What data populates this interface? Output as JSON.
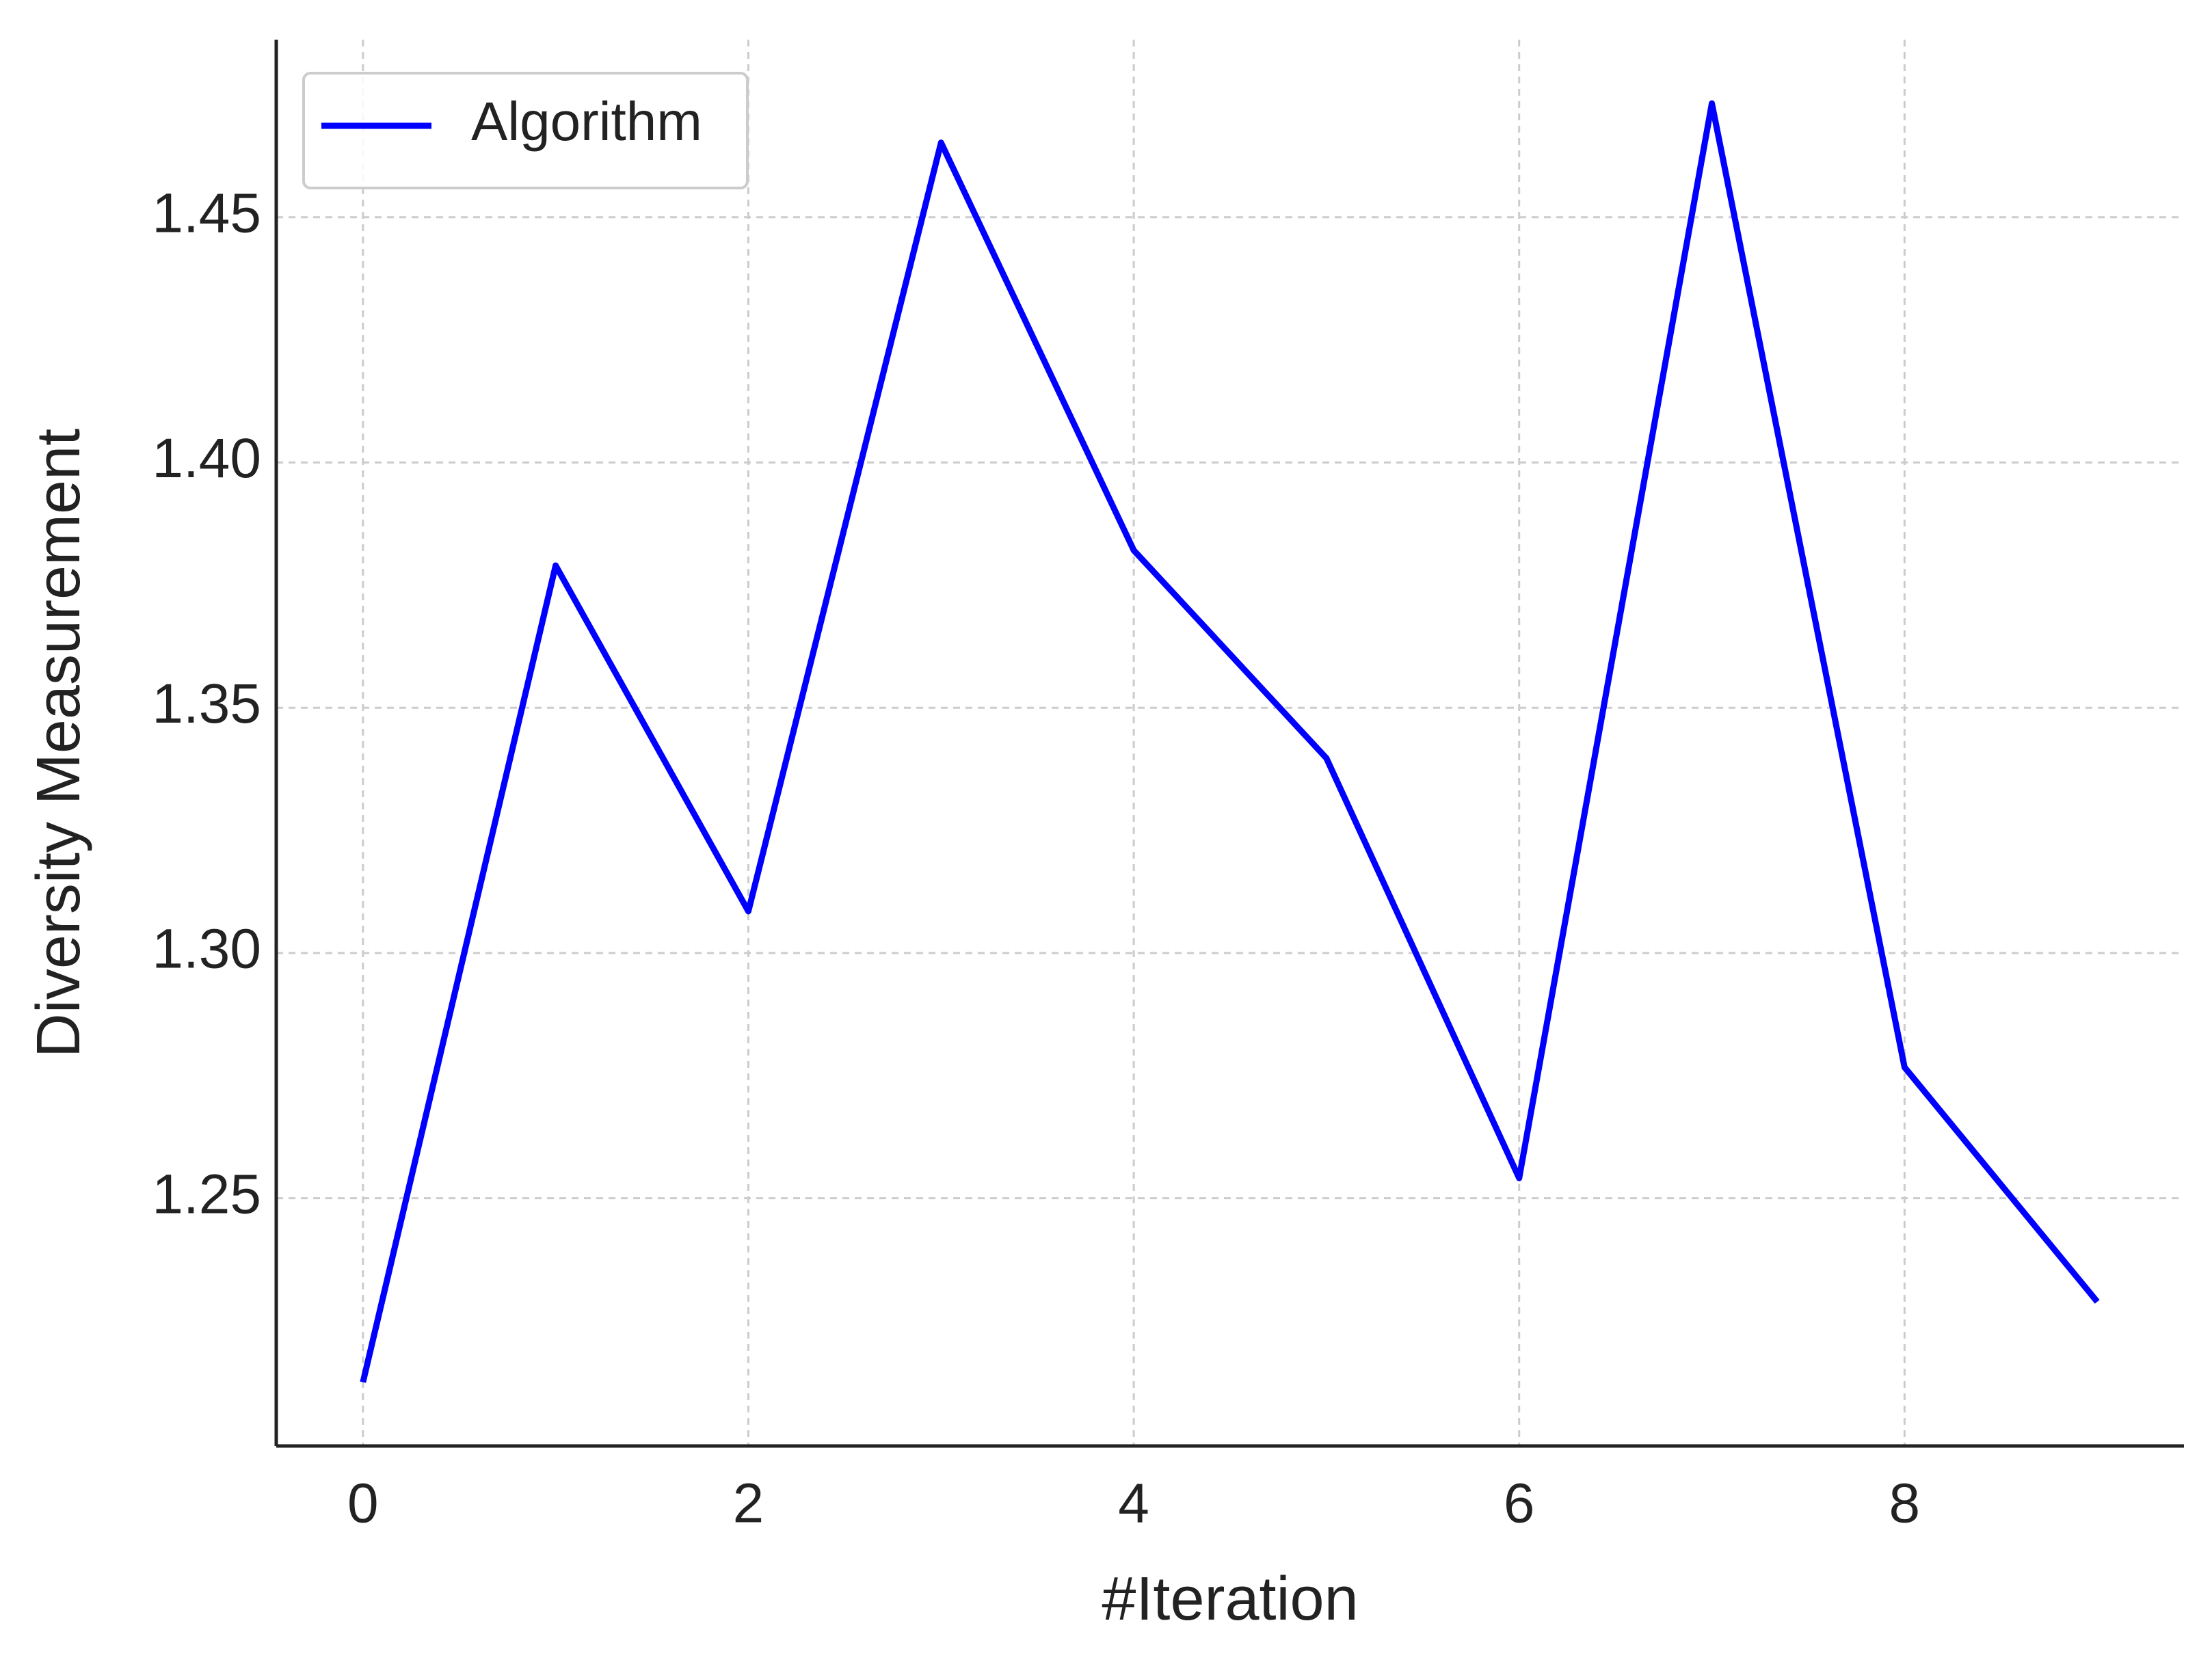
{
  "chart_data": {
    "type": "line",
    "x_label": "#Iteration",
    "y_label": "Diversity Measurement",
    "x": [
      0,
      1,
      2,
      3,
      4,
      5,
      6,
      7,
      8,
      9
    ],
    "series": [
      {
        "name": "Algorithm",
        "color": "#0000ff",
        "values": [
          1.2125,
          1.379,
          1.3085,
          1.4652,
          1.3821,
          1.3397,
          1.2541,
          1.4732,
          1.2767,
          1.2289
        ]
      }
    ],
    "xlim": [
      -0.45,
      9.45
    ],
    "xticks": [
      0,
      2,
      4,
      6,
      8
    ],
    "ylim": [
      1.1995,
      1.4862
    ],
    "yticks": [
      {
        "value": 1.25,
        "label": "1.25"
      },
      {
        "value": 1.3,
        "label": "1.30"
      },
      {
        "value": 1.35,
        "label": "1.35"
      },
      {
        "value": 1.4,
        "label": "1.40"
      },
      {
        "value": 1.45,
        "label": "1.45"
      }
    ],
    "grid": true,
    "legend": "upper left"
  }
}
